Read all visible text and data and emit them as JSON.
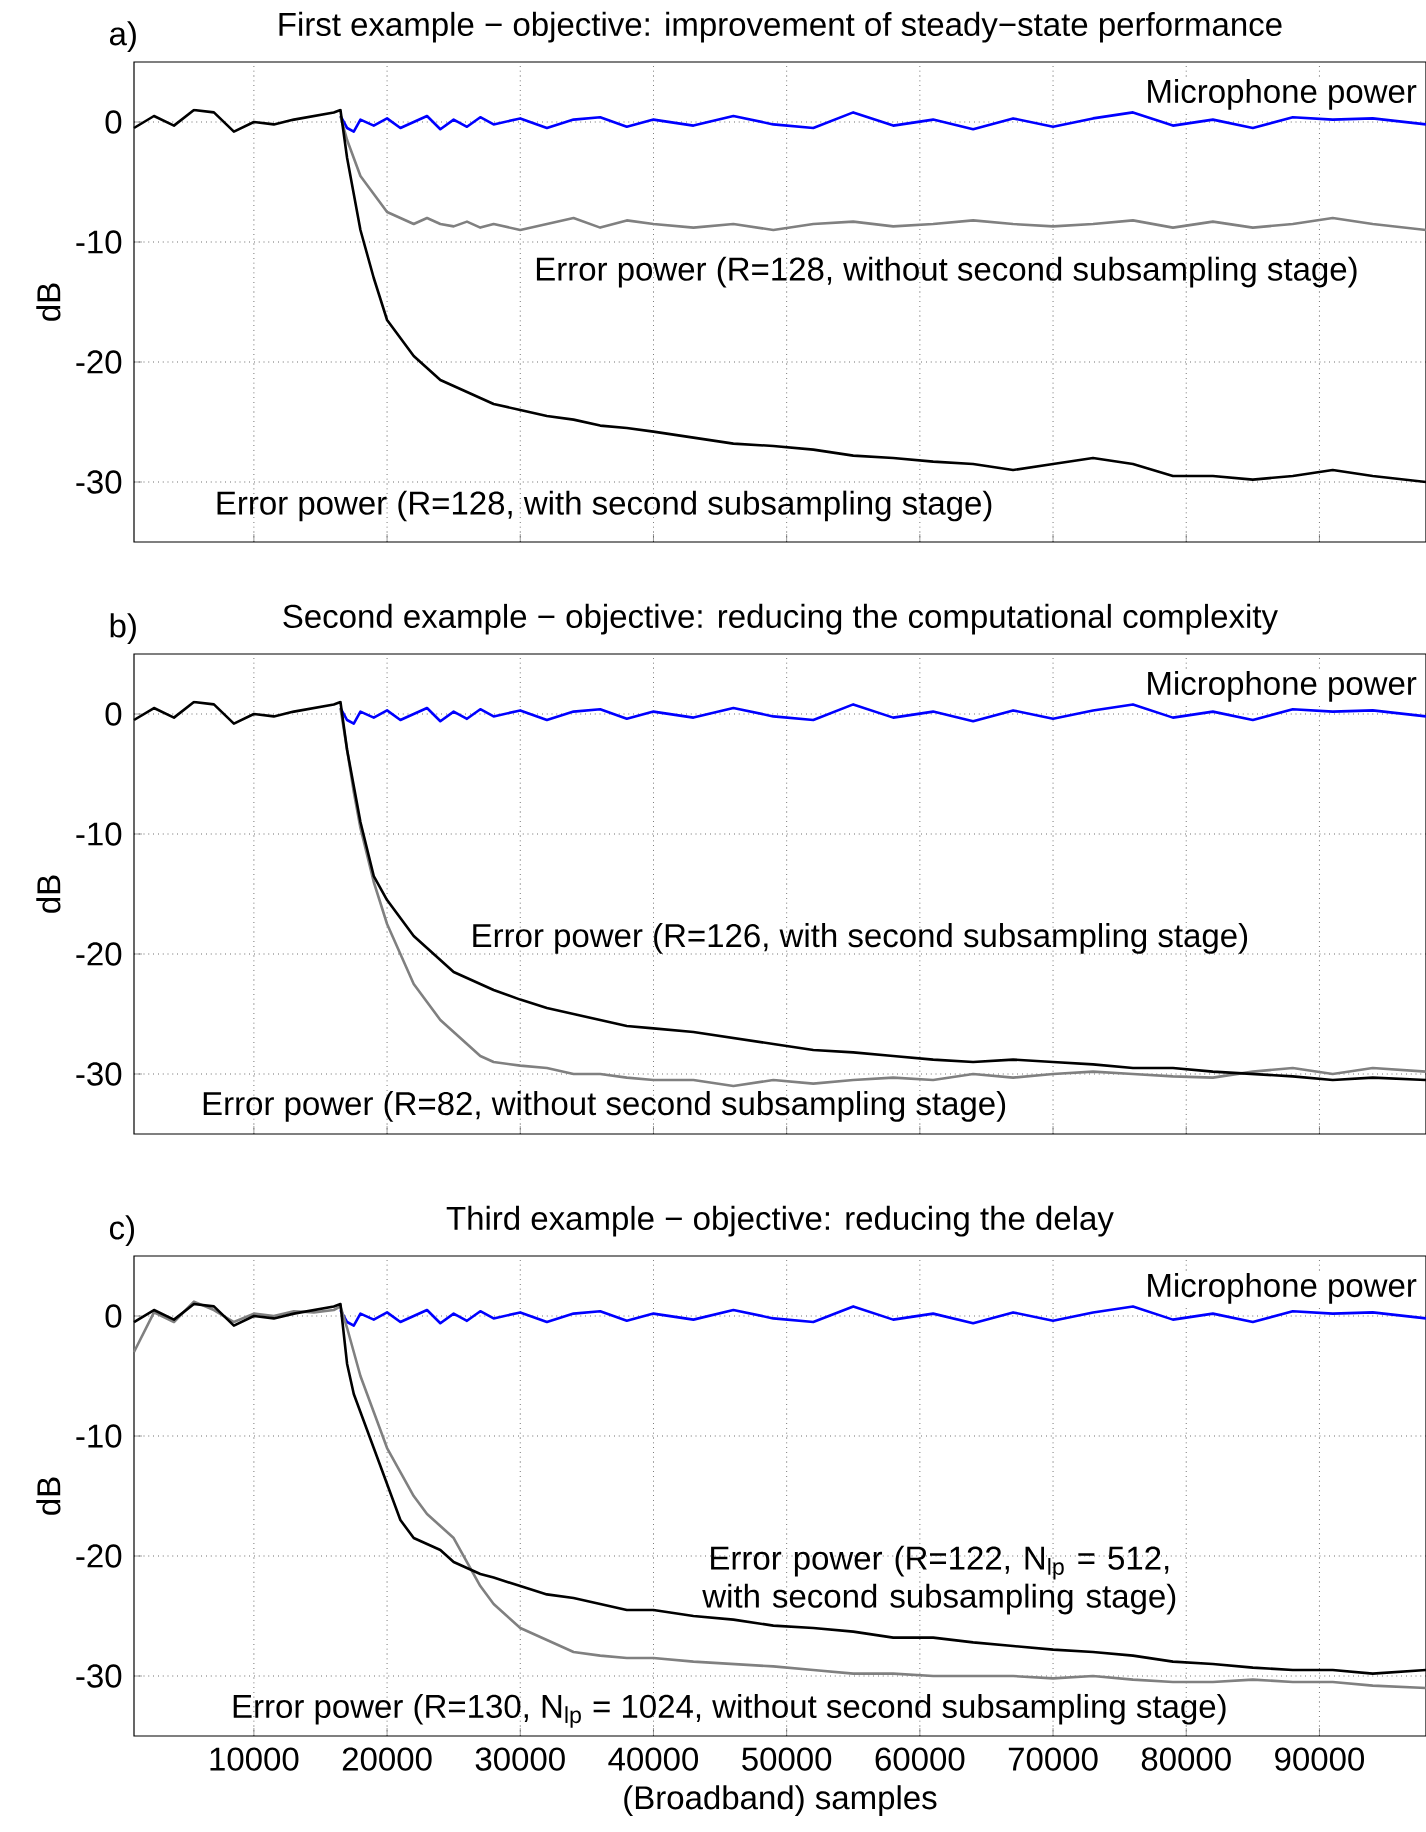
{
  "chart_data": [
    {
      "type": "line",
      "title": "First example − objective: improvement of steady−state performance",
      "ylabel": "dB",
      "annotations": [
        "a)"
      ],
      "grid": true,
      "legend": false,
      "tick_labels": "y",
      "xlim": [
        1000,
        98000
      ],
      "ylim": [
        -35,
        5
      ],
      "xticks": [
        10000,
        20000,
        30000,
        40000,
        50000,
        60000,
        70000,
        80000,
        90000
      ],
      "yticks": [
        -30,
        -20,
        -10,
        0
      ],
      "x": [
        1000,
        2500,
        4000,
        5500,
        7000,
        8500,
        10000,
        11500,
        13000,
        14500,
        16000,
        16500,
        17000,
        17500,
        18000,
        19000,
        20000,
        21000,
        22000,
        23000,
        24000,
        25000,
        26000,
        27000,
        28000,
        30000,
        32000,
        34000,
        36000,
        38000,
        40000,
        43000,
        46000,
        49000,
        52000,
        55000,
        58000,
        61000,
        64000,
        67000,
        70000,
        73000,
        76000,
        79000,
        82000,
        85000,
        88000,
        91000,
        94000,
        98000
      ],
      "series": [
        {
          "name": "Microphone power",
          "color": "#0000ff",
          "values": [
            null,
            null,
            null,
            null,
            null,
            null,
            null,
            null,
            null,
            null,
            null,
            0.5,
            -0.5,
            -0.8,
            0.2,
            -0.3,
            0.3,
            -0.5,
            0,
            0.5,
            -0.6,
            0.2,
            -0.4,
            0.4,
            -0.2,
            0.3,
            -0.5,
            0.2,
            0.4,
            -0.4,
            0.2,
            -0.3,
            0.5,
            -0.2,
            -0.5,
            0.8,
            -0.3,
            0.2,
            -0.6,
            0.3,
            -0.4,
            0.3,
            0.8,
            -0.3,
            0.2,
            -0.5,
            0.4,
            0.2,
            0.3,
            -0.2
          ]
        },
        {
          "name": "Error power (R=128, without second subsampling stage)",
          "color": "#808080",
          "values": [
            null,
            null,
            null,
            null,
            null,
            null,
            null,
            null,
            null,
            null,
            null,
            0.5,
            -1.5,
            -3,
            -4.5,
            -6,
            -7.5,
            -8,
            -8.5,
            -8,
            -8.5,
            -8.7,
            -8.3,
            -8.8,
            -8.5,
            -9,
            -8.5,
            -8,
            -8.8,
            -8.2,
            -8.5,
            -8.8,
            -8.5,
            -9,
            -8.5,
            -8.3,
            -8.7,
            -8.5,
            -8.2,
            -8.5,
            -8.7,
            -8.5,
            -8.2,
            -8.8,
            -8.3,
            -8.8,
            -8.5,
            -8,
            -8.5,
            -9
          ]
        },
        {
          "name": "Error power (R=128, with second subsampling stage)",
          "color": "#000000",
          "values": [
            -0.5,
            0.5,
            -0.3,
            1,
            0.8,
            -0.8,
            0,
            -0.2,
            0.2,
            0.5,
            0.8,
            1,
            -3,
            -6,
            -9,
            -13,
            -16.5,
            -18,
            -19.5,
            -20.5,
            -21.5,
            -22,
            -22.5,
            -23,
            -23.5,
            -24,
            -24.5,
            -24.8,
            -25.3,
            -25.5,
            -25.8,
            -26.3,
            -26.8,
            -27,
            -27.3,
            -27.8,
            -28,
            -28.3,
            -28.5,
            -29,
            -28.5,
            -28,
            -28.5,
            -29.5,
            -29.5,
            -29.8,
            -29.5,
            -29,
            -29.5,
            -30
          ]
        }
      ]
    },
    {
      "type": "line",
      "title": "Second example − objective: reducing the computational complexity",
      "ylabel": "dB",
      "annotations": [
        "b)"
      ],
      "grid": true,
      "legend": false,
      "tick_labels": "y",
      "xlim": [
        1000,
        98000
      ],
      "ylim": [
        -35,
        5
      ],
      "xticks": [
        10000,
        20000,
        30000,
        40000,
        50000,
        60000,
        70000,
        80000,
        90000
      ],
      "yticks": [
        -30,
        -20,
        -10,
        0
      ],
      "x": [
        1000,
        2500,
        4000,
        5500,
        7000,
        8500,
        10000,
        11500,
        13000,
        14500,
        16000,
        16500,
        17000,
        17500,
        18000,
        19000,
        20000,
        21000,
        22000,
        23000,
        24000,
        25000,
        26000,
        27000,
        28000,
        30000,
        32000,
        34000,
        36000,
        38000,
        40000,
        43000,
        46000,
        49000,
        52000,
        55000,
        58000,
        61000,
        64000,
        67000,
        70000,
        73000,
        76000,
        79000,
        82000,
        85000,
        88000,
        91000,
        94000,
        98000
      ],
      "series": [
        {
          "name": "Microphone power",
          "color": "#0000ff",
          "values": [
            null,
            null,
            null,
            null,
            null,
            null,
            null,
            null,
            null,
            null,
            null,
            0.5,
            -0.5,
            -0.8,
            0.2,
            -0.3,
            0.3,
            -0.5,
            0,
            0.5,
            -0.6,
            0.2,
            -0.4,
            0.4,
            -0.2,
            0.3,
            -0.5,
            0.2,
            0.4,
            -0.4,
            0.2,
            -0.3,
            0.5,
            -0.2,
            -0.5,
            0.8,
            -0.3,
            0.2,
            -0.6,
            0.3,
            -0.4,
            0.3,
            0.8,
            -0.3,
            0.2,
            -0.5,
            0.4,
            0.2,
            0.3,
            -0.2
          ]
        },
        {
          "name": "Error power (R=82, without second subsampling stage)",
          "color": "#808080",
          "values": [
            null,
            null,
            null,
            null,
            null,
            null,
            null,
            null,
            null,
            null,
            null,
            0.5,
            -3,
            -6.5,
            -9.5,
            -14,
            -17.5,
            -20,
            -22.5,
            -24,
            -25.5,
            -26.5,
            -27.5,
            -28.5,
            -29,
            -29.3,
            -29.5,
            -30,
            -30,
            -30.3,
            -30.5,
            -30.5,
            -31,
            -30.5,
            -30.8,
            -30.5,
            -30.3,
            -30.5,
            -30,
            -30.3,
            -30,
            -29.8,
            -30,
            -30.2,
            -30.3,
            -29.8,
            -29.5,
            -30,
            -29.5,
            -29.8
          ]
        },
        {
          "name": "Error power (R=126, with second subsampling stage)",
          "color": "#000000",
          "values": [
            -0.5,
            0.5,
            -0.3,
            1,
            0.8,
            -0.8,
            0,
            -0.2,
            0.2,
            0.5,
            0.8,
            1,
            -3,
            -6,
            -9,
            -13.5,
            -15.5,
            -17,
            -18.5,
            -19.5,
            -20.5,
            -21.5,
            -22,
            -22.5,
            -23,
            -23.8,
            -24.5,
            -25,
            -25.5,
            -26,
            -26.2,
            -26.5,
            -27,
            -27.5,
            -28,
            -28.2,
            -28.5,
            -28.8,
            -29,
            -28.8,
            -29,
            -29.2,
            -29.5,
            -29.5,
            -29.8,
            -30,
            -30.2,
            -30.5,
            -30.3,
            -30.5
          ]
        }
      ]
    },
    {
      "type": "line",
      "title": "Third example − objective: reducing the delay",
      "xlabel": "(Broadband) samples",
      "ylabel": "dB",
      "annotations": [
        "c)"
      ],
      "grid": true,
      "legend": false,
      "xlim": [
        1000,
        98000
      ],
      "ylim": [
        -35,
        5
      ],
      "xticks": [
        10000,
        20000,
        30000,
        40000,
        50000,
        60000,
        70000,
        80000,
        90000
      ],
      "yticks": [
        -30,
        -20,
        -10,
        0
      ],
      "x": [
        1000,
        2500,
        4000,
        5500,
        7000,
        8500,
        10000,
        11500,
        13000,
        14500,
        16000,
        16500,
        17000,
        17500,
        18000,
        19000,
        20000,
        21000,
        22000,
        23000,
        24000,
        25000,
        26000,
        27000,
        28000,
        30000,
        32000,
        34000,
        36000,
        38000,
        40000,
        43000,
        46000,
        49000,
        52000,
        55000,
        58000,
        61000,
        64000,
        67000,
        70000,
        73000,
        76000,
        79000,
        82000,
        85000,
        88000,
        91000,
        94000,
        98000
      ],
      "series": [
        {
          "name": "Microphone power",
          "color": "#0000ff",
          "values": [
            null,
            null,
            null,
            null,
            null,
            null,
            null,
            null,
            null,
            null,
            null,
            0.5,
            -0.5,
            -0.8,
            0.2,
            -0.3,
            0.3,
            -0.5,
            0,
            0.5,
            -0.6,
            0.2,
            -0.4,
            0.4,
            -0.2,
            0.3,
            -0.5,
            0.2,
            0.4,
            -0.4,
            0.2,
            -0.3,
            0.5,
            -0.2,
            -0.5,
            0.8,
            -0.3,
            0.2,
            -0.6,
            0.3,
            -0.4,
            0.3,
            0.8,
            -0.3,
            0.2,
            -0.5,
            0.4,
            0.2,
            0.3,
            -0.2
          ]
        },
        {
          "name": "Error power (R=130, N$_{lp}$ = 1024, without second subsampling stage)",
          "color": "#808080",
          "values": [
            -3,
            0.3,
            -0.5,
            1.2,
            0.5,
            -0.5,
            0.2,
            0,
            0.4,
            0.3,
            0.5,
            0.8,
            -1,
            -3,
            -5,
            -8,
            -11,
            -13,
            -15,
            -16.5,
            -17.5,
            -18.5,
            -20.5,
            -22.5,
            -24,
            -26,
            -27,
            -28,
            -28.3,
            -28.5,
            -28.5,
            -28.8,
            -29,
            -29.2,
            -29.5,
            -29.8,
            -29.8,
            -30,
            -30,
            -30,
            -30.2,
            -30,
            -30.3,
            -30.5,
            -30.5,
            -30.3,
            -30.5,
            -30.5,
            -30.8,
            -31
          ]
        },
        {
          "name": "Error power (R=122, N$_{lp}$ = 512, with second subsampling stage)",
          "color": "#000000",
          "values": [
            -0.5,
            0.5,
            -0.3,
            1,
            0.8,
            -0.8,
            0,
            -0.2,
            0.2,
            0.5,
            0.8,
            1,
            -4,
            -6.5,
            -8,
            -11,
            -14,
            -17,
            -18.5,
            -19,
            -19.5,
            -20.5,
            -21,
            -21.5,
            -21.8,
            -22.5,
            -23.2,
            -23.5,
            -24,
            -24.5,
            -24.5,
            -25,
            -25.3,
            -25.8,
            -26,
            -26.3,
            -26.8,
            -26.8,
            -27.2,
            -27.5,
            -27.8,
            -28,
            -28.3,
            -28.8,
            -29,
            -29.3,
            -29.5,
            -29.5,
            -29.8,
            -29.5
          ]
        }
      ]
    }
  ]
}
